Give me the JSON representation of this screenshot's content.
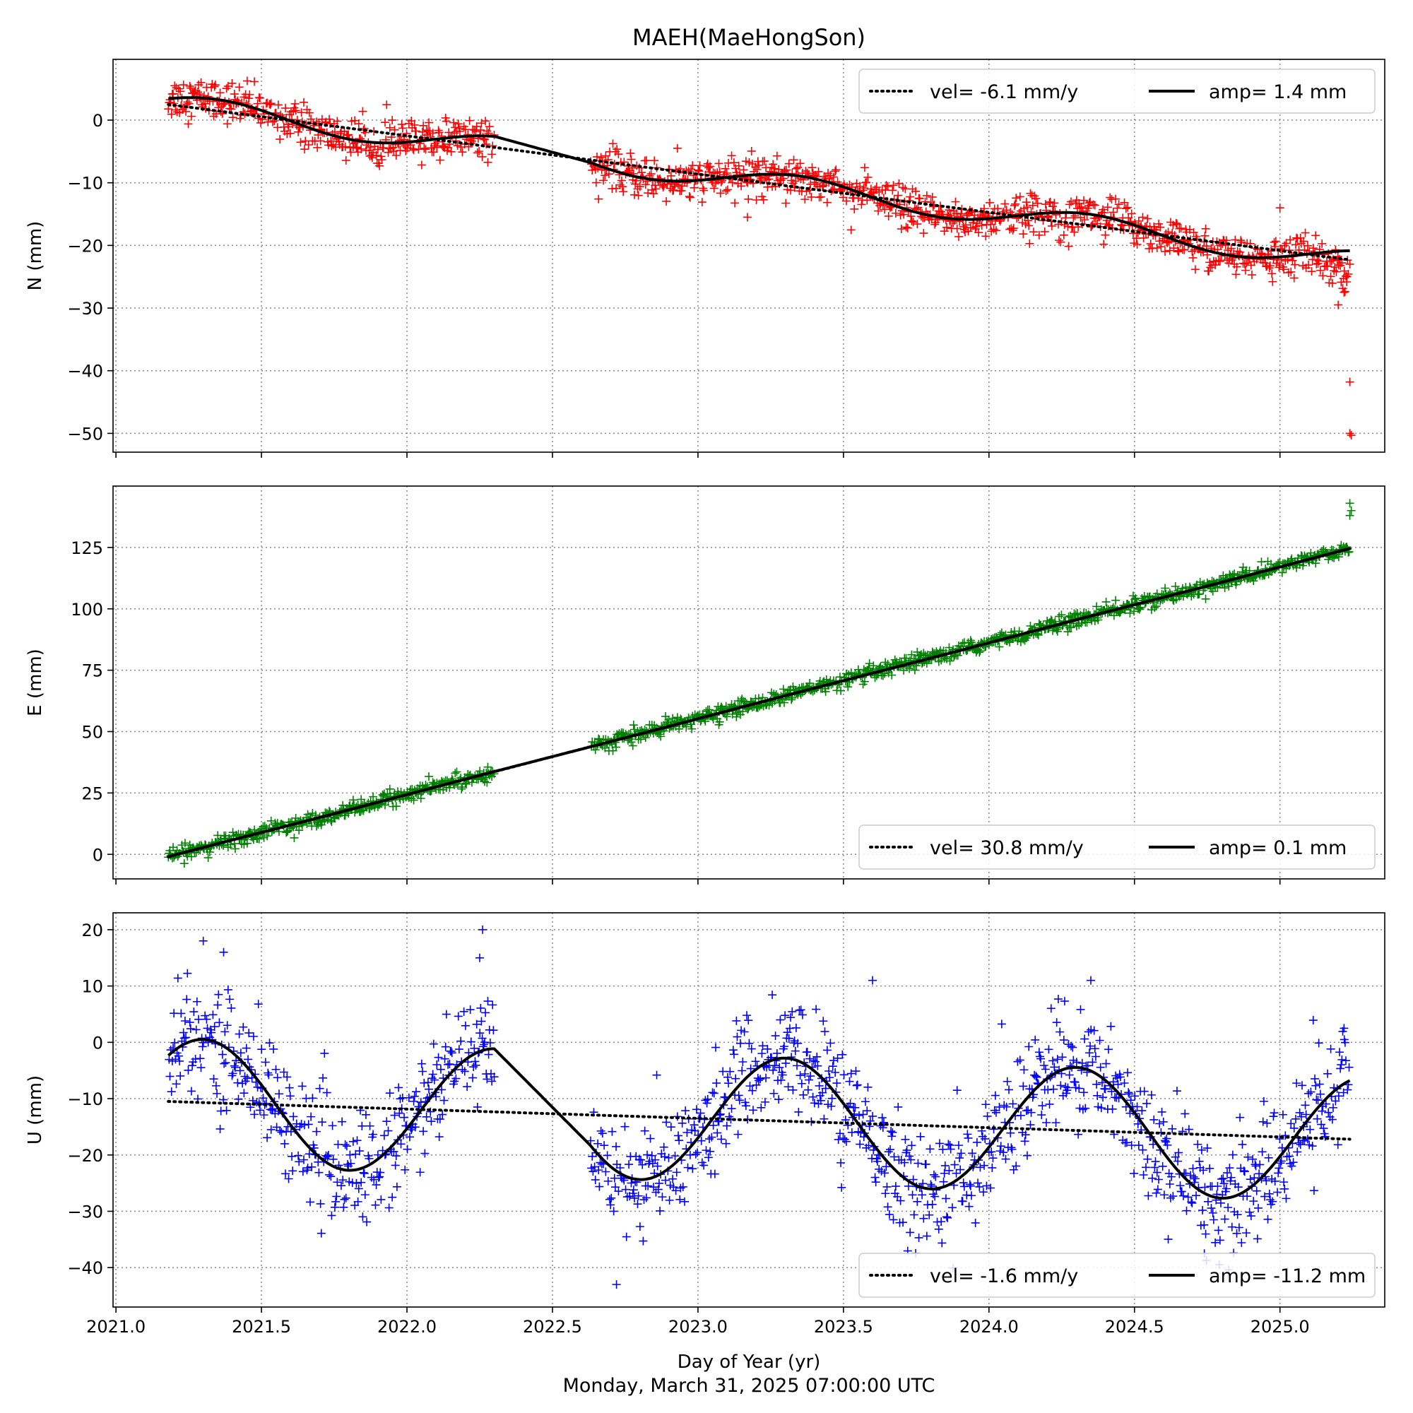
{
  "chart_data": {
    "type": "scatter",
    "title": "MAEH(MaeHongSon)",
    "xlabel": "Day of Year (yr)",
    "timestamp": "Monday, March 31, 2025 07:00:00 UTC",
    "xlim": [
      2020.99,
      2025.36
    ],
    "xticks": [
      2021.0,
      2021.5,
      2022.0,
      2022.5,
      2023.0,
      2023.5,
      2024.0,
      2024.5,
      2025.0
    ],
    "xtick_labels": [
      "2021.0",
      "2021.5",
      "2022.0",
      "2022.5",
      "2023.0",
      "2023.5",
      "2024.0",
      "2024.5",
      "2025.0"
    ],
    "grid": true,
    "panels": [
      {
        "id": "N",
        "ylabel": "N (mm)",
        "ylim": [
          -53,
          9.7
        ],
        "yticks": [
          0,
          -10,
          -20,
          -30,
          -40,
          -50
        ],
        "ytick_labels": [
          "0",
          "−10",
          "−20",
          "−30",
          "−40",
          "−50"
        ],
        "marker": "+",
        "color": "#ff0000",
        "data_range": [
          2021.18,
          2025.24
        ],
        "gap": [
          2022.3,
          2022.63
        ],
        "trend": {
          "start": 2.5,
          "end": -22.3
        },
        "seasonal": {
          "amplitude_shape": 1.4,
          "phase_peak": 0.3
        },
        "noise": 1.6,
        "outliers": [
          [
            2023.17,
            -15.5
          ],
          [
            2025.0,
            -14.0
          ],
          [
            2025.24,
            -41.8
          ],
          [
            2025.24,
            -50.0
          ],
          [
            2025.245,
            -50.3
          ]
        ],
        "end_points": [
          [
            2025.23,
            -25.0
          ],
          [
            2025.22,
            -27.5
          ],
          [
            2025.2,
            -29.5
          ],
          [
            2025.24,
            -23.0
          ]
        ],
        "legend": {
          "position": "upper-right",
          "vel_label": "vel= -6.1 mm/y",
          "amp_label": "amp= 1.4 mm"
        }
      },
      {
        "id": "E",
        "ylabel": "E (mm)",
        "ylim": [
          -10,
          150
        ],
        "yticks": [
          0,
          25,
          50,
          75,
          100,
          125
        ],
        "ytick_labels": [
          "0",
          "25",
          "50",
          "75",
          "100",
          "125"
        ],
        "marker": "+",
        "color": "#008000",
        "data_range": [
          2021.18,
          2025.24
        ],
        "gap": [
          2022.3,
          2022.63
        ],
        "trend": {
          "start": -1.0,
          "end": 124.5
        },
        "seasonal": {
          "amplitude_shape": 0.1,
          "phase_peak": 0.3
        },
        "noise": 1.5,
        "outliers": [
          [
            2025.24,
            143
          ],
          [
            2025.24,
            138
          ],
          [
            2025.245,
            140
          ]
        ],
        "end_points": [],
        "legend": {
          "position": "lower-right",
          "vel_label": "vel= 30.8 mm/y",
          "amp_label": "amp= 0.1 mm"
        }
      },
      {
        "id": "U",
        "ylabel": "U (mm)",
        "ylim": [
          -47,
          23
        ],
        "yticks": [
          20,
          10,
          0,
          -10,
          -20,
          -30,
          -40
        ],
        "ytick_labels": [
          "20",
          "10",
          "0",
          "−10",
          "−20",
          "−30",
          "−40"
        ],
        "marker": "+",
        "color": "#0000ff",
        "data_range": [
          2021.18,
          2025.24
        ],
        "gap": [
          2022.3,
          2022.63
        ],
        "trend": {
          "start": -10.5,
          "end": -17.2
        },
        "seasonal": {
          "amplitude_shape": 11.2,
          "phase_peak": 0.3
        },
        "noise": 5.0,
        "outliers": [
          [
            2021.3,
            18
          ],
          [
            2021.37,
            16
          ],
          [
            2022.26,
            20
          ],
          [
            2022.25,
            15
          ],
          [
            2022.72,
            -43
          ],
          [
            2023.6,
            11
          ],
          [
            2024.35,
            11
          ],
          [
            2024.74,
            -37.5
          ],
          [
            2025.22,
            2.5
          ]
        ],
        "end_points": [],
        "legend": {
          "position": "lower-right",
          "vel_label": "vel= -1.6 mm/y",
          "amp_label": "amp= -11.2 mm"
        }
      }
    ]
  }
}
